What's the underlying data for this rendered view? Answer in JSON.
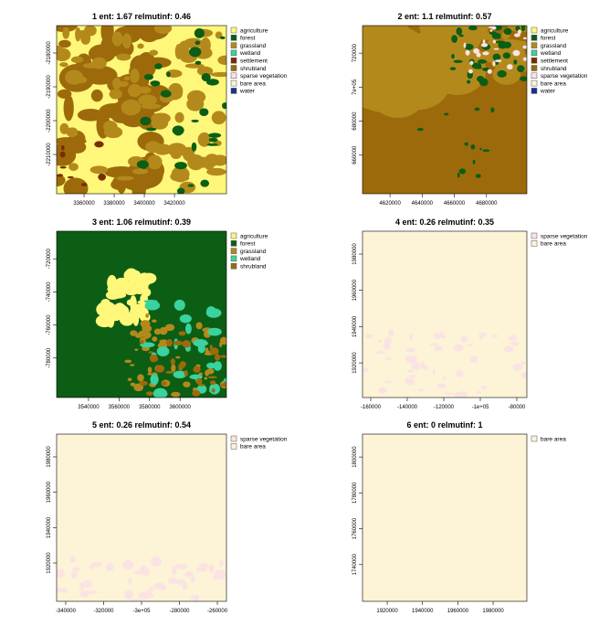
{
  "panels": [
    {
      "title": "1 ent: 1.67 relmutinf: 0.46",
      "legend": [
        {
          "name": "agriculture",
          "color": "#fff77a"
        },
        {
          "name": "forest",
          "color": "#0b5e14"
        },
        {
          "name": "grassland",
          "color": "#b4891c"
        },
        {
          "name": "wetland",
          "color": "#3ad29f"
        },
        {
          "name": "settlement",
          "color": "#7a2c00"
        },
        {
          "name": "shrubland",
          "color": "#9c6a0b"
        },
        {
          "name": "sparse vegetation",
          "color": "#fbe3e3"
        },
        {
          "name": "bare area",
          "color": "#fdf3d7"
        },
        {
          "name": "water",
          "color": "#1a2f8f"
        }
      ],
      "xlim": [
        3341800,
        3454500
      ],
      "xticks": [
        3360000,
        3380000,
        3400000,
        3420000
      ],
      "ylim": [
        -2221600,
        -2171900
      ],
      "yticks": [
        -2180000,
        -2190000,
        -2200000,
        -2210000
      ]
    },
    {
      "title": "2 ent: 1.1 relmutinf: 0.57",
      "legend": [
        {
          "name": "agriculture",
          "color": "#fff77a"
        },
        {
          "name": "forest",
          "color": "#0b5e14"
        },
        {
          "name": "grassland",
          "color": "#b4891c"
        },
        {
          "name": "wetland",
          "color": "#3ad29f"
        },
        {
          "name": "settlement",
          "color": "#7a2c00"
        },
        {
          "name": "shrubland",
          "color": "#9c6a0b"
        },
        {
          "name": "sparse vegetation",
          "color": "#fbe3e3"
        },
        {
          "name": "bare area",
          "color": "#fdf3d7"
        },
        {
          "name": "water",
          "color": "#1a2f8f"
        }
      ],
      "xlim": [
        4602900,
        4705100
      ],
      "xticks": [
        4620000,
        4640000,
        4660000,
        4680000
      ],
      "ylim": [
        637300,
        736200
      ],
      "yticks": [
        720000,
        {
          "value": 700000,
          "label": "7e+05"
        },
        680000,
        660000
      ]
    },
    {
      "title": "3 ent: 1.06 relmutinf: 0.39",
      "legend": [
        {
          "name": "agriculture",
          "color": "#fff77a"
        },
        {
          "name": "forest",
          "color": "#0b5e14"
        },
        {
          "name": "grassland",
          "color": "#b4891c"
        },
        {
          "name": "wetland",
          "color": "#3ad29f"
        },
        {
          "name": "shrubland",
          "color": "#9c6a0b"
        }
      ],
      "xlim": [
        3519100,
        3630400
      ],
      "xticks": [
        3540000,
        3560000,
        3580000,
        3600000
      ],
      "ylim": [
        -803900,
        -703300
      ],
      "yticks": [
        -720000,
        -740000,
        -760000,
        -780000
      ]
    },
    {
      "title": "4 ent: 0.26 relmutinf: 0.35",
      "legend": [
        {
          "name": "sparse vegetation",
          "color": "#fbe3e3"
        },
        {
          "name": "bare area",
          "color": "#fdf3d7"
        }
      ],
      "xlim": [
        -164500,
        -74500
      ],
      "xticks": [
        -160000,
        -140000,
        -120000,
        {
          "value": -100000,
          "label": "-1e+05"
        },
        -80000
      ],
      "ylim": [
        1900900,
        1992600
      ],
      "yticks": [
        1980000,
        1960000,
        1940000,
        1920000
      ]
    },
    {
      "title": "5 ent: 0.26 relmutinf: 0.54",
      "legend": [
        {
          "name": "sparse vegetation",
          "color": "#fbe3e3"
        },
        {
          "name": "bare area",
          "color": "#fdf3d7"
        }
      ],
      "xlim": [
        -344800,
        -255200
      ],
      "xticks": [
        -340000,
        -320000,
        {
          "value": -300000,
          "label": "-3e+05"
        },
        -280000,
        -260000
      ],
      "ylim": [
        1898300,
        1992900
      ],
      "yticks": [
        1980000,
        1960000,
        1940000,
        1920000
      ]
    },
    {
      "title": "6 ent: 0 relmutinf: 1",
      "legend": [
        {
          "name": "bare area",
          "color": "#fdf3d7"
        }
      ],
      "xlim": [
        1906000,
        1999100
      ],
      "xticks": [
        1920000,
        1940000,
        1960000,
        1980000
      ],
      "ylim": [
        1719500,
        1812800
      ],
      "yticks": [
        1800000,
        1780000,
        1760000,
        1740000
      ]
    }
  ]
}
